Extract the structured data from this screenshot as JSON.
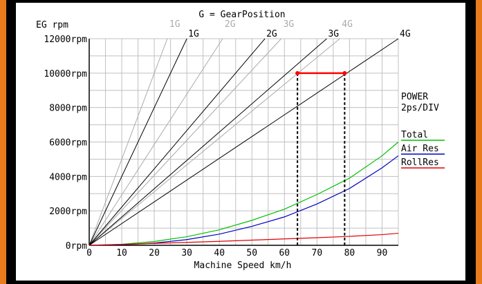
{
  "chart_data": {
    "type": "line",
    "title": "G = GearPosition",
    "ylabel": "EG rpm",
    "xlabel": "Machine Speed km/h",
    "right_label_1": "POWER",
    "right_label_2": "2ps/DIV",
    "xlim": [
      0,
      95
    ],
    "ylim": [
      0,
      12000
    ],
    "x_ticks": [
      "0",
      "10",
      "20",
      "30",
      "40",
      "50",
      "60",
      "70",
      "80",
      "90"
    ],
    "y_ticks": [
      "0rpm",
      "2000rpm",
      "4000rpm",
      "6000rpm",
      "8000rpm",
      "10000rpm",
      "12000rpm"
    ],
    "gear_lines": [
      {
        "name": "1G",
        "speed_at_12000": 30,
        "color": "#000000",
        "label_top": "1G"
      },
      {
        "name": "2G",
        "speed_at_12000": 54,
        "color": "#000000",
        "label_top": "2G"
      },
      {
        "name": "3G",
        "speed_at_12000": 73,
        "color": "#000000",
        "label_top": "3G"
      },
      {
        "name": "4G",
        "speed_at_12000": 95,
        "color": "#000000",
        "label_top": "4G"
      }
    ],
    "gear_lines_alt": [
      {
        "name": "1G",
        "speed_at_12000": 24,
        "color": "#aaaaaa",
        "label_top": "1G"
      },
      {
        "name": "2G",
        "speed_at_12000": 41,
        "color": "#aaaaaa",
        "label_top": "2G"
      },
      {
        "name": "3G",
        "speed_at_12000": 59,
        "color": "#aaaaaa",
        "label_top": "3G"
      },
      {
        "name": "4G",
        "speed_at_12000": 77,
        "color": "#aaaaaa",
        "label_top": "4G"
      }
    ],
    "shift_marker": {
      "x_from": 64,
      "x_to": 78.5,
      "rpm": 10000,
      "color": "#ff0000"
    },
    "series": [
      {
        "name": "Total",
        "color": "#00c000",
        "x": [
          0,
          10,
          20,
          30,
          40,
          50,
          60,
          70,
          80,
          90,
          95
        ],
        "y": [
          0,
          60,
          220,
          500,
          900,
          1450,
          2100,
          2950,
          3900,
          5200,
          6000
        ]
      },
      {
        "name": "Air Res",
        "color": "#0000c0",
        "x": [
          0,
          10,
          20,
          30,
          40,
          50,
          60,
          70,
          80,
          90,
          95
        ],
        "y": [
          0,
          30,
          130,
          330,
          650,
          1100,
          1650,
          2400,
          3300,
          4500,
          5200
        ]
      },
      {
        "name": "RollRes",
        "color": "#e00000",
        "x": [
          0,
          10,
          20,
          30,
          40,
          50,
          60,
          70,
          80,
          90,
          95
        ],
        "y": [
          0,
          50,
          110,
          170,
          230,
          300,
          370,
          440,
          520,
          620,
          700
        ]
      }
    ],
    "grid": true
  }
}
